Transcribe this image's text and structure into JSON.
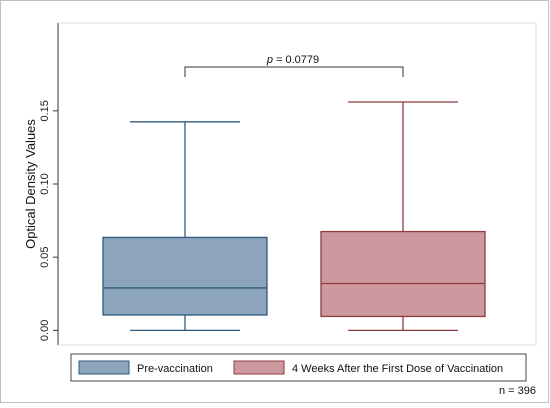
{
  "chart_data": {
    "type": "box",
    "ylabel": "Optical Density Values",
    "ylim": [
      -0.01,
      0.21
    ],
    "y_ticks": [
      0.0,
      0.05,
      0.1,
      0.15
    ],
    "y_tick_labels": [
      "0.00",
      "0.05",
      "0.10",
      "0.15"
    ],
    "grid": false,
    "series": [
      {
        "name": "Pre-vaccination",
        "color": "#8ca4bc",
        "edge": "#2f5a7f",
        "min": 0.0,
        "q1": 0.0105,
        "median": 0.029,
        "q3": 0.0635,
        "max": 0.1425
      },
      {
        "name": "4 Weeks After the First Dose of Vaccination",
        "color": "#cc9a9e",
        "edge": "#8f3a40",
        "min": 0.0,
        "q1": 0.0095,
        "median": 0.032,
        "q3": 0.0675,
        "max": 0.156
      }
    ],
    "comparison": {
      "p_label": "p",
      "p_value": "= 0.0779"
    },
    "legend_position": "bottom",
    "note": "n = 396"
  }
}
